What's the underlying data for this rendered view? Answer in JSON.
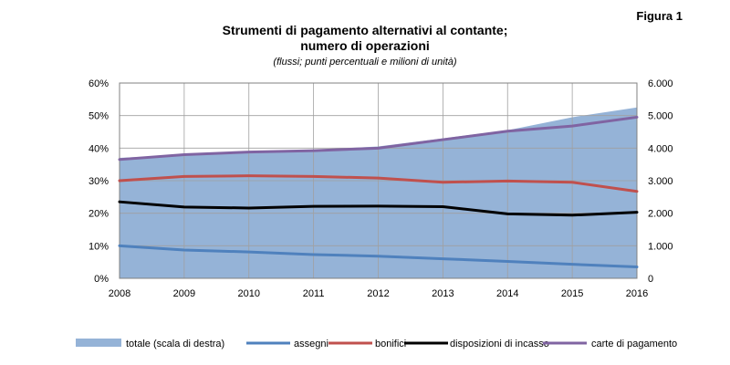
{
  "figure_label": "Figura 1",
  "chart_data": {
    "type": "line",
    "title": "Strumenti di pagamento alternativi al contante;",
    "title_line2": "numero di operazioni",
    "subtitle": "(flussi; punti percentuali e milioni di unità)",
    "categories": [
      "2008",
      "2009",
      "2010",
      "2011",
      "2012",
      "2013",
      "2014",
      "2015",
      "2016"
    ],
    "y_left": {
      "ticks": [
        "0%",
        "10%",
        "20%",
        "30%",
        "40%",
        "50%",
        "60%"
      ],
      "range": [
        0,
        60
      ]
    },
    "y_right": {
      "ticks": [
        "0",
        "1.000",
        "2.000",
        "3.000",
        "4.000",
        "5.000",
        "6.000"
      ],
      "range": [
        0,
        6000
      ]
    },
    "grid": true,
    "legend_position": "bottom",
    "series": [
      {
        "name": "totale (scala di destra)",
        "type": "area",
        "axis": "right",
        "color": "#95B3D7",
        "values": [
          3700,
          3800,
          3850,
          3950,
          4050,
          4300,
          4550,
          4950,
          5250
        ]
      },
      {
        "name": "assegni",
        "type": "line",
        "axis": "left",
        "color": "#4F81BD",
        "values": [
          10.0,
          8.7,
          8.1,
          7.3,
          6.8,
          6.0,
          5.2,
          4.3,
          3.5
        ]
      },
      {
        "name": "bonifici",
        "type": "line",
        "axis": "left",
        "color": "#C0504D",
        "values": [
          30.0,
          31.3,
          31.5,
          31.3,
          30.8,
          29.5,
          29.9,
          29.5,
          26.7
        ]
      },
      {
        "name": "disposizioni di incasso",
        "type": "line",
        "axis": "left",
        "color": "#000000",
        "values": [
          23.5,
          21.9,
          21.6,
          22.1,
          22.2,
          22.0,
          19.8,
          19.4,
          20.3
        ]
      },
      {
        "name": "carte di pagamento",
        "type": "line",
        "axis": "left",
        "color": "#8064A2",
        "values": [
          36.5,
          38.0,
          38.8,
          39.2,
          40.0,
          42.6,
          45.2,
          46.8,
          49.5
        ]
      }
    ]
  }
}
